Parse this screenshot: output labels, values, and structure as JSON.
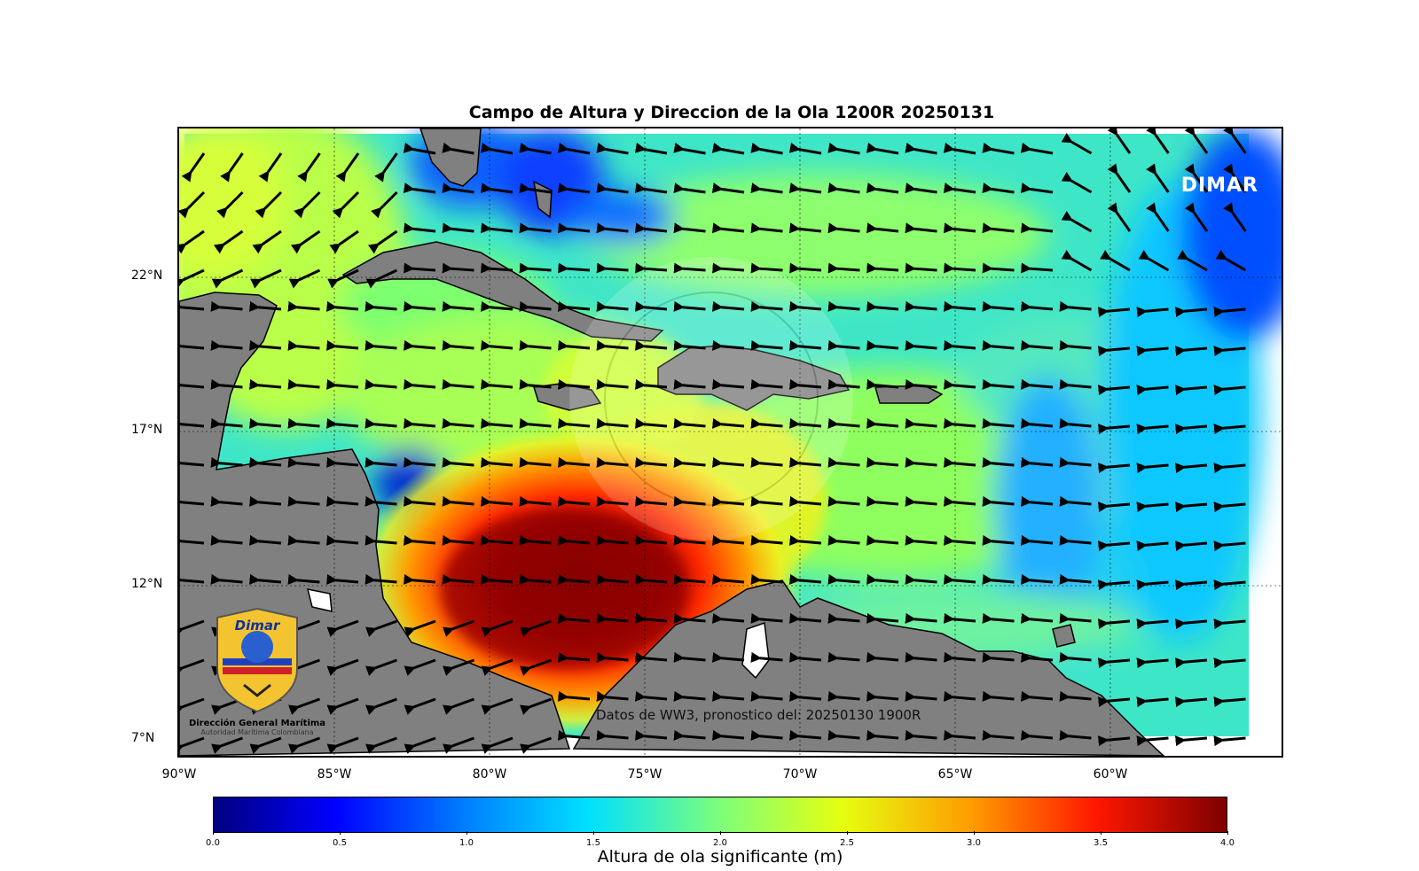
{
  "map": {
    "title": "Campo de Altura y Direccion de la Ola 1200R 20250131",
    "watermark_text": "DIMAR",
    "source_note": "Datos de WW3, pronostico del: 20250130 1900R",
    "lat_labels": [
      "22°N",
      "17°N",
      "12°N",
      "7°N"
    ],
    "lon_labels": [
      "90°W",
      "85°W",
      "80°W",
      "75°W",
      "70°W",
      "65°W",
      "60°W"
    ],
    "extent": {
      "lon": [
        -90,
        -55
      ],
      "lat": [
        7,
        27
      ]
    },
    "logo": {
      "name": "Dimar",
      "org": "Dirección General Marítima",
      "sub": "Autoridad Marítima Colombiana",
      "icon": "dimar-shield-logo-icon"
    },
    "colors": {
      "land": "#808080",
      "ocean_base": "#43e0b8",
      "arrow": "#000000"
    }
  },
  "colorbar": {
    "label": "Altura de ola significante (m)",
    "ticks": [
      "0.0",
      "0.5",
      "1.0",
      "1.5",
      "2.0",
      "2.5",
      "3.0",
      "3.5",
      "4.0"
    ],
    "range": [
      0,
      4
    ]
  }
}
